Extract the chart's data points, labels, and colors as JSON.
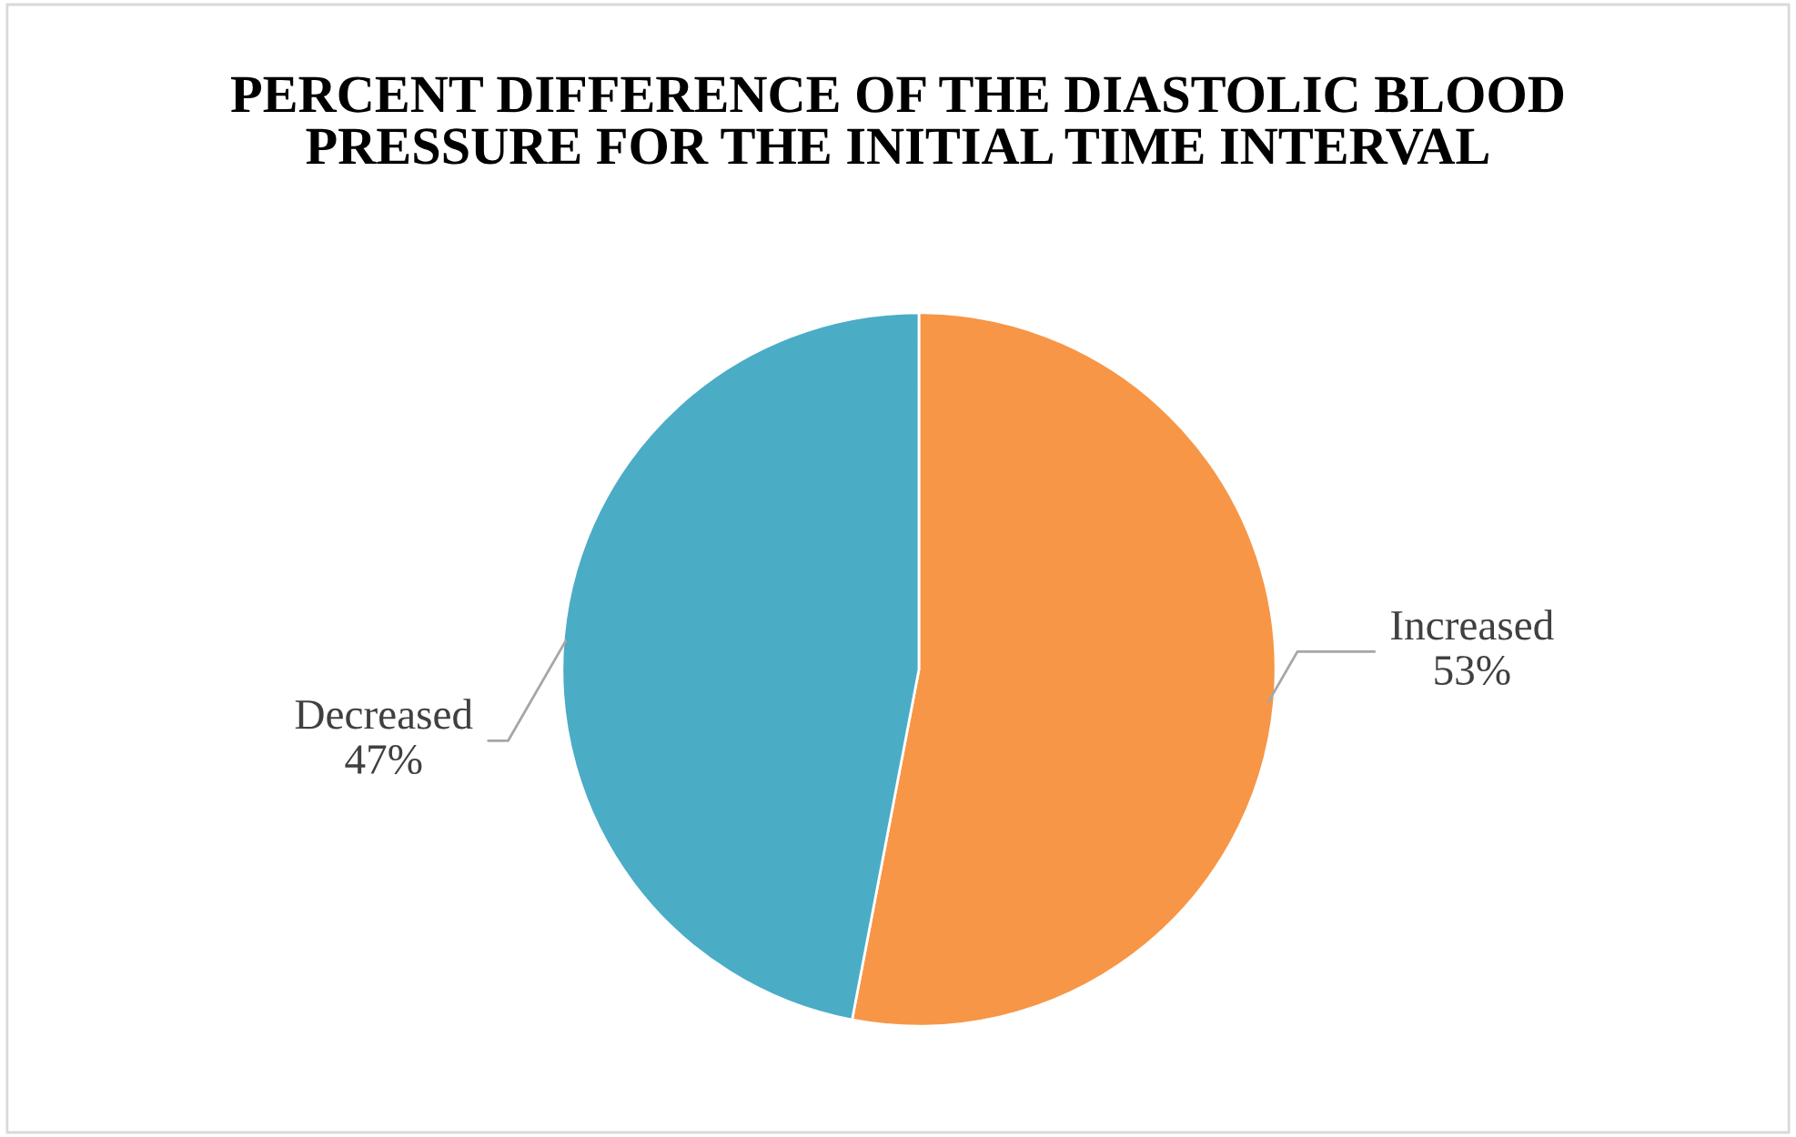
{
  "chart_data": {
    "type": "pie",
    "title": "PERCENT DIFFERENCE OF THE DIASTOLIC BLOOD\nPRESSURE FOR THE INITIAL TIME INTERVAL",
    "categories": [
      "Increased",
      "Decreased"
    ],
    "values": [
      53,
      47
    ],
    "value_labels": [
      "53%",
      "47%"
    ],
    "colors": [
      "#f79646",
      "#4bacc6"
    ],
    "legend": false
  }
}
